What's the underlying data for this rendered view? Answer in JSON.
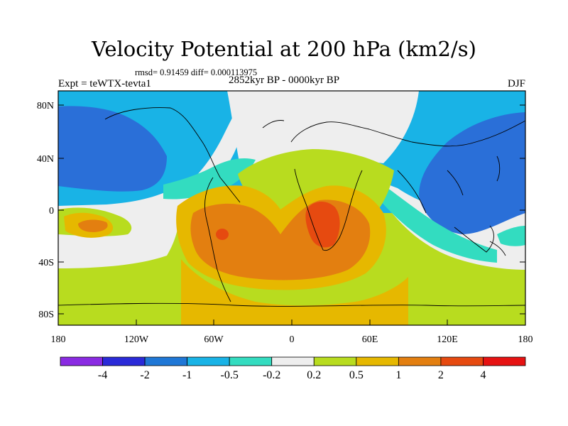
{
  "title": "Velocity Potential at 200 hPa (km2/s)",
  "stats": "rmsd= 0.91459 diff= 0.000113975",
  "experiment": "Expt = teWTX-tevta1",
  "period": "2852kyr BP - 0000kyr BP",
  "season": "DJF",
  "axes": {
    "y_ticks": [
      "80N",
      "40N",
      "0",
      "40S",
      "80S"
    ],
    "x_ticks": [
      "180",
      "120W",
      "60W",
      "0",
      "60E",
      "120E",
      "180"
    ]
  },
  "colorbar": {
    "labels": [
      "-4",
      "-2",
      "-1",
      "-0.5",
      "-0.2",
      "0.2",
      "0.5",
      "1",
      "2",
      "4"
    ],
    "colors": [
      "#8a2be2",
      "#2a2ad8",
      "#1f77d6",
      "#19b3e6",
      "#33dcc0",
      "#eeeeee",
      "#b8dc1f",
      "#e6b800",
      "#e37f10",
      "#e64a10",
      "#e61212"
    ]
  },
  "map_colors": {
    "strong_negative": "#2a6fd8",
    "negative": "#19b3e6",
    "weak_negative": "#33dcc0",
    "neutral": "#eeeeee",
    "weak_positive": "#b8dc1f",
    "positive": "#e6b800",
    "strong_positive": "#e37f10",
    "max_positive": "#e64a10"
  }
}
